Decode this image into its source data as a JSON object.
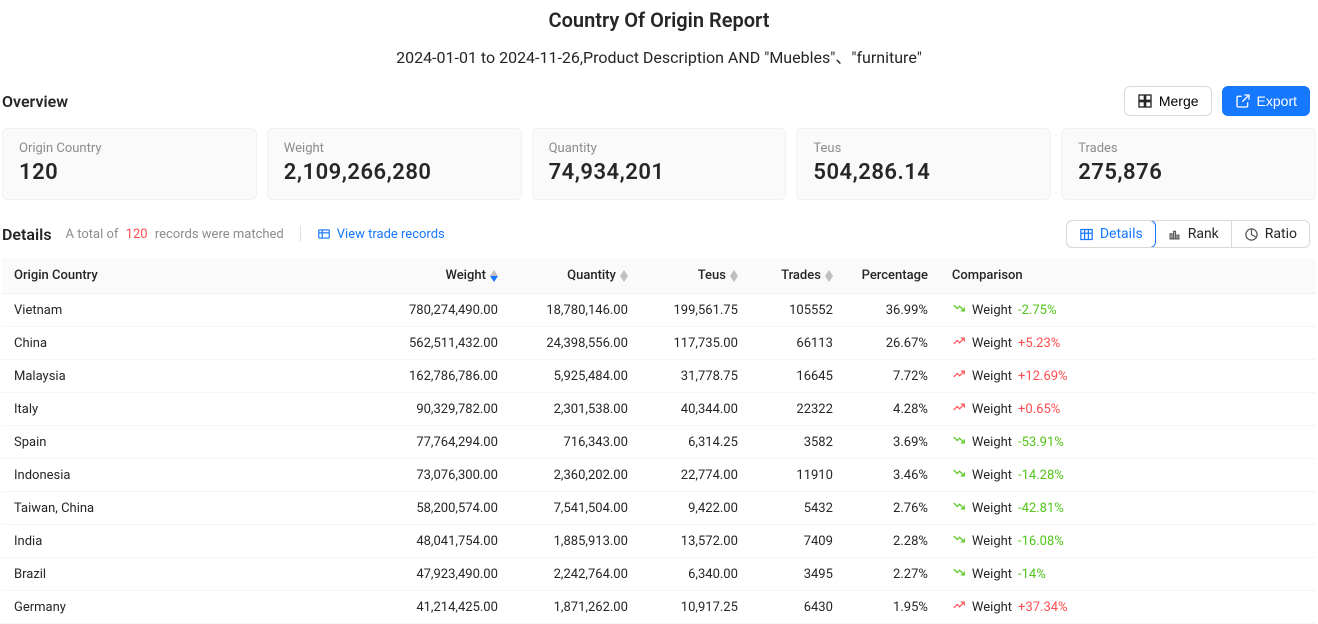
{
  "header": {
    "title": "Country Of Origin Report",
    "subtitle": "2024-01-01 to 2024-11-26,Product Description AND \"Muebles\"、\"furniture\""
  },
  "overview": {
    "label": "Overview",
    "merge_label": "Merge",
    "export_label": "Export",
    "cards": [
      {
        "label": "Origin Country",
        "value": "120"
      },
      {
        "label": "Weight",
        "value": "2,109,266,280"
      },
      {
        "label": "Quantity",
        "value": "74,934,201"
      },
      {
        "label": "Teus",
        "value": "504,286.14"
      },
      {
        "label": "Trades",
        "value": "275,876"
      }
    ]
  },
  "details": {
    "title": "Details",
    "meta_prefix": "A total of",
    "meta_count": "120",
    "meta_suffix": "records were matched",
    "view_records": "View trade records",
    "tabs": {
      "details": "Details",
      "rank": "Rank",
      "ratio": "Ratio"
    }
  },
  "table": {
    "columns": {
      "country": "Origin Country",
      "weight": "Weight",
      "quantity": "Quantity",
      "teus": "Teus",
      "trades": "Trades",
      "percentage": "Percentage",
      "comparison": "Comparison"
    },
    "comparison_label": "Weight",
    "rows": [
      {
        "country": "Vietnam",
        "weight": "780,274,490.00",
        "quantity": "18,780,146.00",
        "teus": "199,561.75",
        "trades": "105552",
        "percentage": "36.99%",
        "cmp_value": "-2.75%",
        "cmp_dir": "down"
      },
      {
        "country": "China",
        "weight": "562,511,432.00",
        "quantity": "24,398,556.00",
        "teus": "117,735.00",
        "trades": "66113",
        "percentage": "26.67%",
        "cmp_value": "+5.23%",
        "cmp_dir": "up"
      },
      {
        "country": "Malaysia",
        "weight": "162,786,786.00",
        "quantity": "5,925,484.00",
        "teus": "31,778.75",
        "trades": "16645",
        "percentage": "7.72%",
        "cmp_value": "+12.69%",
        "cmp_dir": "up"
      },
      {
        "country": "Italy",
        "weight": "90,329,782.00",
        "quantity": "2,301,538.00",
        "teus": "40,344.00",
        "trades": "22322",
        "percentage": "4.28%",
        "cmp_value": "+0.65%",
        "cmp_dir": "up"
      },
      {
        "country": "Spain",
        "weight": "77,764,294.00",
        "quantity": "716,343.00",
        "teus": "6,314.25",
        "trades": "3582",
        "percentage": "3.69%",
        "cmp_value": "-53.91%",
        "cmp_dir": "down"
      },
      {
        "country": "Indonesia",
        "weight": "73,076,300.00",
        "quantity": "2,360,202.00",
        "teus": "22,774.00",
        "trades": "11910",
        "percentage": "3.46%",
        "cmp_value": "-14.28%",
        "cmp_dir": "down"
      },
      {
        "country": "Taiwan, China",
        "weight": "58,200,574.00",
        "quantity": "7,541,504.00",
        "teus": "9,422.00",
        "trades": "5432",
        "percentage": "2.76%",
        "cmp_value": "-42.81%",
        "cmp_dir": "down"
      },
      {
        "country": "India",
        "weight": "48,041,754.00",
        "quantity": "1,885,913.00",
        "teus": "13,572.00",
        "trades": "7409",
        "percentage": "2.28%",
        "cmp_value": "-16.08%",
        "cmp_dir": "down"
      },
      {
        "country": "Brazil",
        "weight": "47,923,490.00",
        "quantity": "2,242,764.00",
        "teus": "6,340.00",
        "trades": "3495",
        "percentage": "2.27%",
        "cmp_value": "-14%",
        "cmp_dir": "down"
      },
      {
        "country": "Germany",
        "weight": "41,214,425.00",
        "quantity": "1,871,262.00",
        "teus": "10,917.25",
        "trades": "6430",
        "percentage": "1.95%",
        "cmp_value": "+37.34%",
        "cmp_dir": "up"
      }
    ]
  },
  "colors": {
    "primary": "#1677ff",
    "danger": "#ff4d4f",
    "success": "#52c41a",
    "muted": "#8c8c8c",
    "bg_card": "#fafafa"
  }
}
